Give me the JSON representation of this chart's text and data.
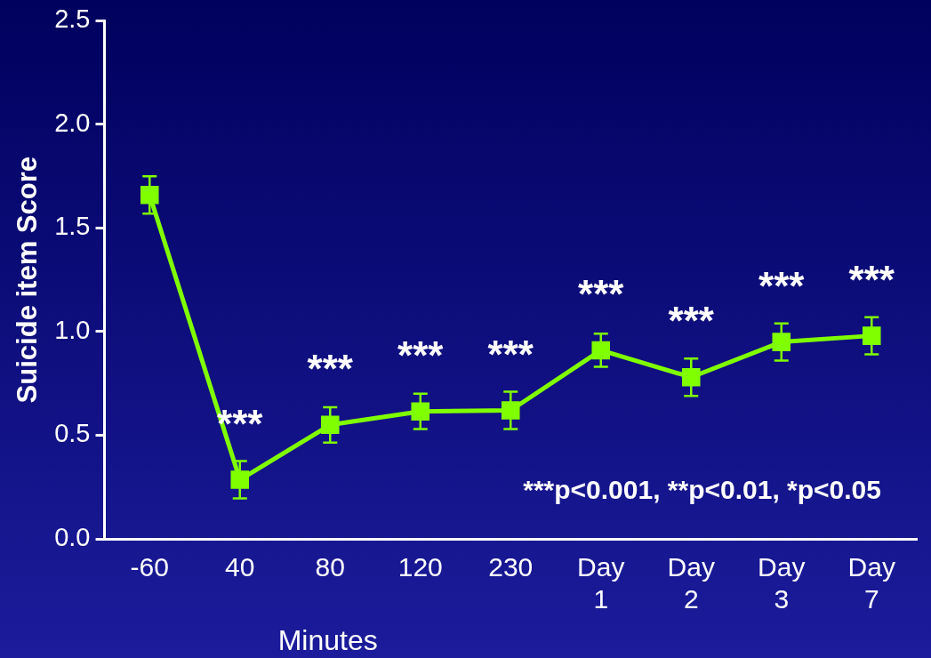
{
  "chart_data": {
    "type": "line",
    "ylabel": "Suicide item Score",
    "xlabel": "Minutes",
    "categories": [
      "-60",
      "40",
      "80",
      "120",
      "230",
      "Day\n1",
      "Day\n2",
      "Day\n3",
      "Day\n7"
    ],
    "series": [
      {
        "color": "#80ff00",
        "values": [
          1.66,
          0.285,
          0.55,
          0.615,
          0.62,
          0.91,
          0.78,
          0.95,
          0.98
        ],
        "errors": [
          0.09,
          0.09,
          0.085,
          0.085,
          0.09,
          0.08,
          0.09,
          0.09,
          0.09
        ]
      }
    ],
    "ylim": [
      0,
      2.5
    ],
    "yticks": [
      {
        "value": 0,
        "label": "0.0"
      },
      {
        "value": 0.5,
        "label": "0.5"
      },
      {
        "value": 1,
        "label": "1.0"
      },
      {
        "value": 1.5,
        "label": "1.5"
      },
      {
        "value": 2,
        "label": "2.0"
      },
      {
        "value": 2.5,
        "label": "2.5"
      }
    ],
    "grid": false,
    "legend": false,
    "marker": "square",
    "line_style": "solid",
    "annotations": [
      {
        "text": "***",
        "x": "40",
        "y": 0.285
      },
      {
        "text": "***",
        "x": "80",
        "y": 0.55
      },
      {
        "text": "***",
        "x": "120",
        "y": 0.615
      },
      {
        "text": "***",
        "x": "230",
        "y": 0.62
      },
      {
        "text": "***",
        "x": "Day\n1",
        "y": 0.91
      },
      {
        "text": "***",
        "x": "Day\n2",
        "y": 0.78
      },
      {
        "text": "***",
        "x": "Day\n3",
        "y": 0.95
      },
      {
        "text": "***",
        "x": "Day\n7",
        "y": 0.98
      },
      "***p<0.001, **p<0.01, *p<0.05"
    ]
  }
}
